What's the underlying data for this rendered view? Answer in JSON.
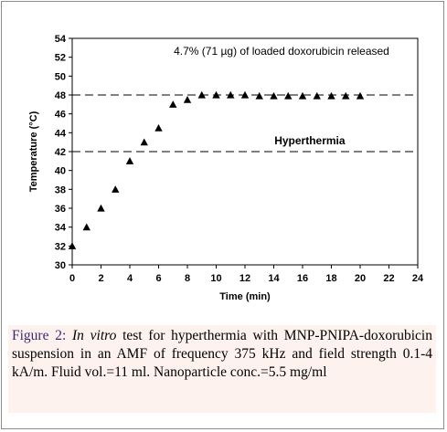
{
  "chart_data": {
    "type": "scatter",
    "x": [
      0,
      1,
      2,
      3,
      4,
      5,
      6,
      7,
      8,
      9,
      10,
      11,
      12,
      13,
      14,
      15,
      16,
      17,
      18,
      19,
      20
    ],
    "y": [
      32,
      34,
      36,
      38,
      41,
      43,
      44.5,
      47,
      47.5,
      48,
      48,
      48,
      48,
      47.9,
      47.9,
      47.9,
      47.9,
      47.9,
      47.9,
      47.9,
      47.9
    ],
    "marker": "triangle",
    "color": "#000000",
    "xlabel": "Time (min)",
    "ylabel": "Temperature (°C)",
    "xlim": [
      0,
      24
    ],
    "ylim": [
      30,
      54
    ],
    "xticks": [
      "0",
      "2",
      "4",
      "6",
      "8",
      "10",
      "12",
      "14",
      "16",
      "18",
      "20",
      "22",
      "24"
    ],
    "yticks": [
      "30",
      "32",
      "34",
      "36",
      "38",
      "40",
      "42",
      "44",
      "46",
      "48",
      "50",
      "52",
      "54"
    ],
    "grid": false,
    "reference_lines": [
      {
        "y": 48,
        "style": "dashed"
      },
      {
        "y": 42,
        "style": "dashed",
        "label": "Hyperthermia"
      }
    ],
    "annotation": "4.7% (71 µg) of loaded doxorubicin released"
  },
  "caption": {
    "label": "Figure 2:",
    "italic_phrase": "In vitro",
    "text": " test for hyperthermia with MNP-PNIPA-doxorubicin suspension in an AMF of frequency 375 kHz and field strength 0.1-4 kA/m. Fluid vol.=11 ml. Nanoparticle conc.=5.5 mg/ml"
  }
}
